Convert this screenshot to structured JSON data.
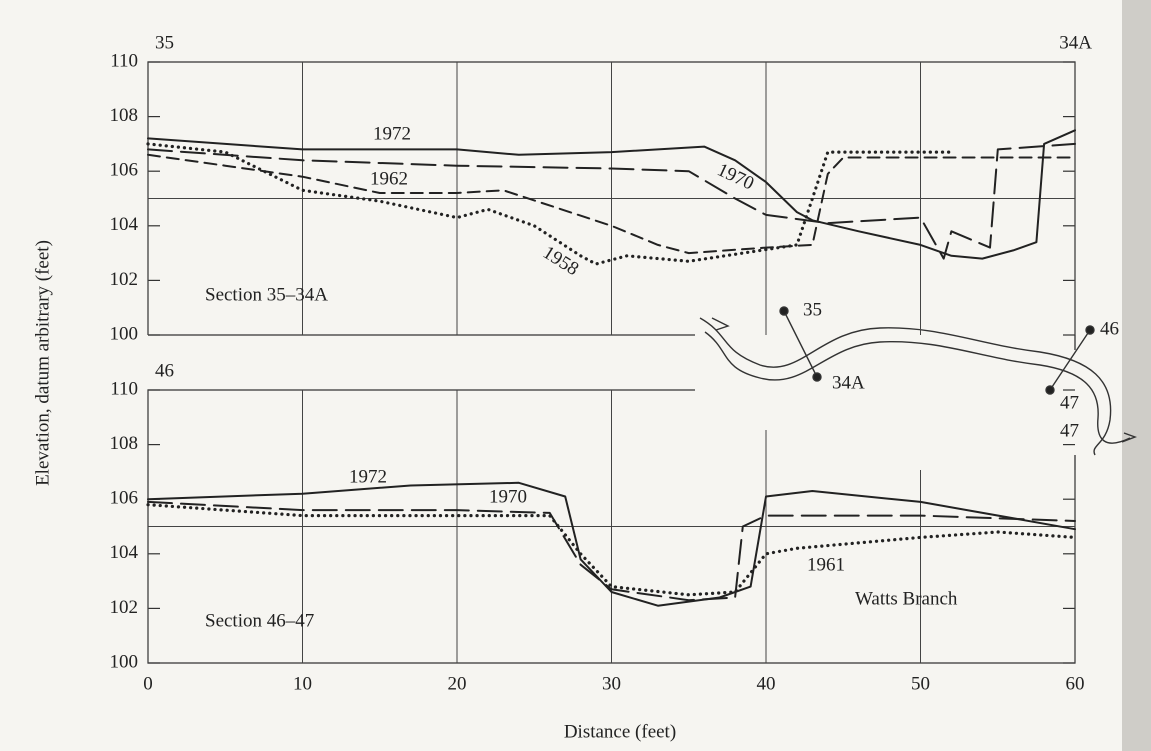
{
  "chart_data": [
    {
      "type": "line",
      "annotations": [
        "35",
        "34A",
        "Section 35–34A"
      ],
      "ylabel": "Elevation, datum arbitrary (feet)",
      "xlim": [
        0,
        60
      ],
      "xticks": [
        0,
        10,
        20,
        30,
        40,
        50,
        60
      ],
      "ylim": [
        100,
        110
      ],
      "yticks": [
        100,
        102,
        104,
        106,
        108,
        110
      ],
      "reference_line": 105,
      "grid": true,
      "series": [
        {
          "name": "1972",
          "color": "#222222",
          "dash": "solid",
          "x": [
            0,
            10,
            20,
            24,
            30,
            36,
            38,
            40,
            42,
            43,
            46,
            50,
            52,
            54,
            56,
            57.5,
            58,
            60
          ],
          "values": [
            107.2,
            106.8,
            106.8,
            106.6,
            106.7,
            106.9,
            106.4,
            105.6,
            104.5,
            104.2,
            103.8,
            103.3,
            102.9,
            102.8,
            103.1,
            103.4,
            107,
            107.5
          ]
        },
        {
          "name": "1970",
          "color": "#222222",
          "dash": "long-dash",
          "x": [
            0,
            10,
            20,
            30,
            35,
            38,
            40,
            44,
            50,
            51.5,
            52,
            54.5,
            55,
            60
          ],
          "values": [
            106.8,
            106.4,
            106.2,
            106.1,
            106,
            105,
            104.4,
            104.1,
            104.3,
            102.8,
            103.8,
            103.2,
            106.8,
            107
          ]
        },
        {
          "name": "1962",
          "color": "#222222",
          "dash": "dash",
          "x": [
            0,
            5,
            10,
            15,
            20,
            23,
            30,
            33,
            35,
            40,
            43,
            44,
            45,
            50,
            60
          ],
          "values": [
            106.6,
            106.2,
            105.8,
            105.2,
            105.2,
            105.3,
            104,
            103.3,
            103,
            103.2,
            103.3,
            105.9,
            106.5,
            106.5,
            106.5
          ]
        },
        {
          "name": "1958",
          "color": "#222222",
          "dash": "dotted",
          "x": [
            0,
            5,
            10,
            15,
            20,
            22,
            25,
            28,
            29,
            31,
            35,
            42,
            43,
            44,
            52
          ],
          "values": [
            107,
            106.7,
            105.3,
            104.9,
            104.3,
            104.6,
            104,
            102.9,
            102.6,
            102.9,
            102.7,
            103.3,
            105,
            106.7,
            106.7
          ]
        }
      ]
    },
    {
      "type": "line",
      "annotations": [
        "46",
        "Section 46–47",
        "Watts Branch"
      ],
      "xlabel": "Distance (feet)",
      "xlim": [
        0,
        60
      ],
      "xticks": [
        0,
        10,
        20,
        30,
        40,
        50,
        60
      ],
      "ylim": [
        100,
        110
      ],
      "yticks": [
        100,
        102,
        104,
        106,
        108,
        110
      ],
      "reference_line": 105,
      "grid": true,
      "series": [
        {
          "name": "1972",
          "color": "#222222",
          "dash": "solid",
          "x": [
            0,
            10,
            17,
            24,
            27,
            28,
            30,
            33,
            37,
            39,
            40,
            43,
            50,
            60
          ],
          "values": [
            106,
            106.2,
            106.5,
            106.6,
            106.1,
            103.8,
            102.6,
            102.1,
            102.4,
            102.8,
            106.1,
            106.3,
            105.9,
            104.9
          ]
        },
        {
          "name": "1970",
          "color": "#222222",
          "dash": "long-dash",
          "x": [
            0,
            10,
            20,
            26,
            28,
            30,
            35,
            38,
            38.5,
            40,
            50,
            60
          ],
          "values": [
            105.9,
            105.6,
            105.6,
            105.5,
            103.6,
            102.7,
            102.3,
            102.4,
            105,
            105.4,
            105.4,
            105.2
          ]
        },
        {
          "name": "1961",
          "color": "#222222",
          "dash": "dotted",
          "x": [
            0,
            10,
            20,
            26,
            28,
            30,
            35,
            38,
            40,
            42,
            50,
            55,
            60
          ],
          "values": [
            105.8,
            105.4,
            105.4,
            105.4,
            104,
            102.8,
            102.5,
            102.6,
            104,
            104.2,
            104.6,
            104.8,
            104.6
          ]
        }
      ]
    }
  ],
  "map": {
    "labels": [
      "35",
      "34A",
      "46",
      "47",
      "47"
    ]
  }
}
